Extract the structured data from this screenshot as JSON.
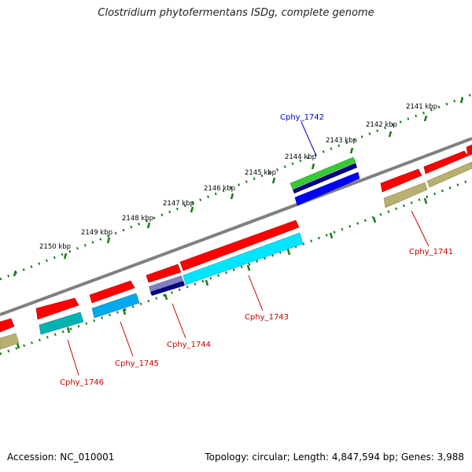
{
  "title": "Clostridium phytofermentans ISDg, complete genome",
  "footer": {
    "accession": "Accession: NC_010001",
    "info": "Topology: circular; Length: 4,847,594 bp; Genes: 3,988"
  },
  "scale_labels": [
    "2141 kbp",
    "2142 kbp",
    "2143 kbp",
    "2144 kbp",
    "2145 kbp",
    "2146 kbp",
    "2147 kbp",
    "2148 kbp",
    "2149 kbp",
    "2150 kbp"
  ],
  "gene_labels": [
    {
      "text": "Cphy_1742",
      "color": "#0000cc"
    },
    {
      "text": "Cphy_1741",
      "color": "#cc0000"
    },
    {
      "text": "Cphy_1743",
      "color": "#cc0000"
    },
    {
      "text": "Cphy_1744",
      "color": "#cc0000"
    },
    {
      "text": "Cphy_1745",
      "color": "#cc0000"
    },
    {
      "text": "Cphy_1746",
      "color": "#cc0000"
    }
  ],
  "colors": {
    "backbone": "#808080",
    "ticks": "#1a7a1a",
    "cds": "#ff0000",
    "green_feature": "#33cc33",
    "navy_feature": "#000080",
    "blue_feature": "#0000ff",
    "cyan_feature": "#00e5ff",
    "teal_feature": "#00b3b3",
    "sky_feature": "#00aaee",
    "olive_feature": "#b8b070",
    "slate_feature": "#8080c0"
  }
}
